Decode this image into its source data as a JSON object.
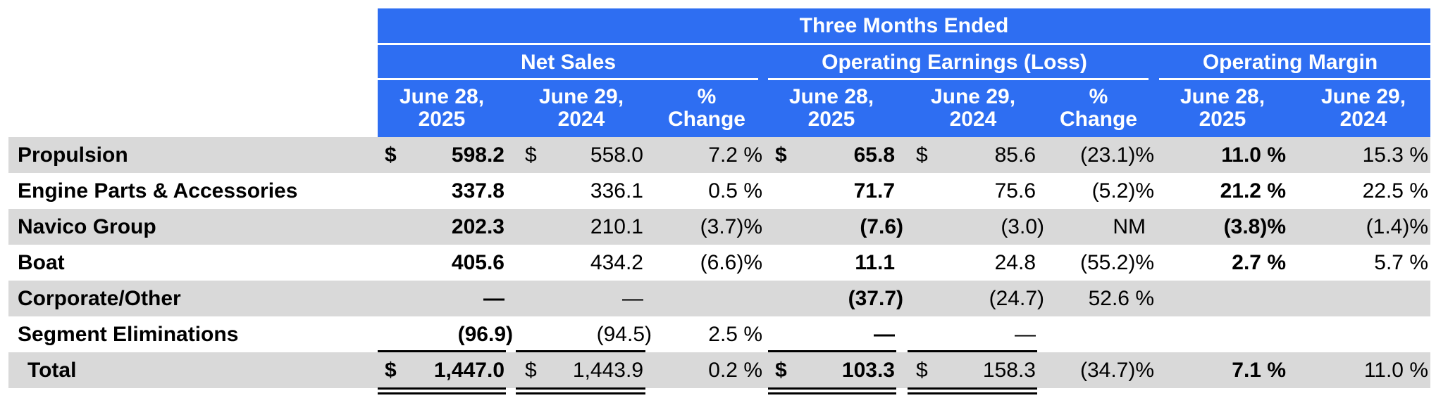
{
  "header": {
    "period": "Three Months Ended",
    "groups": [
      "Net Sales",
      "Operating Earnings (Loss)",
      "Operating Margin"
    ],
    "columns": [
      [
        "June 28,",
        "2025"
      ],
      [
        "June 29,",
        "2024"
      ],
      [
        "%",
        "Change"
      ],
      [
        "June 28,",
        "2025"
      ],
      [
        "June 29,",
        "2024"
      ],
      [
        "%",
        "Change"
      ],
      [
        "June 28,",
        "2025"
      ],
      [
        "June 29,",
        "2024"
      ]
    ]
  },
  "currency": "$",
  "rows": [
    {
      "label": "Propulsion",
      "cells": [
        "598.2",
        "558.0",
        "7.2 %",
        "65.8",
        "85.6",
        "(23.1)%",
        "11.0 %",
        "15.3 %"
      ]
    },
    {
      "label": "Engine Parts & Accessories",
      "cells": [
        "337.8",
        "336.1",
        "0.5 %",
        "71.7",
        "75.6",
        "(5.2)%",
        "21.2 %",
        "22.5 %"
      ]
    },
    {
      "label": "Navico Group",
      "cells": [
        "202.3",
        "210.1",
        "(3.7)%",
        "(7.6)",
        "(3.0)",
        "NM",
        "(3.8)%",
        "(1.4)%"
      ]
    },
    {
      "label": "Boat",
      "cells": [
        "405.6",
        "434.2",
        "(6.6)%",
        "11.1",
        "24.8",
        "(55.2)%",
        "2.7 %",
        "5.7 %"
      ]
    },
    {
      "label": "Corporate/Other",
      "cells": [
        "—",
        "—",
        "",
        "(37.7)",
        "(24.7)",
        "52.6 %",
        "",
        ""
      ]
    },
    {
      "label": "Segment Eliminations",
      "cells": [
        "(96.9)",
        "(94.5)",
        "2.5 %",
        "—",
        "—",
        "",
        "",
        ""
      ]
    },
    {
      "label": "Total",
      "cells": [
        "1,447.0",
        "1,443.9",
        "0.2 %",
        "103.3",
        "158.3",
        "(34.7)%",
        "7.1 %",
        "11.0 %"
      ]
    }
  ]
}
